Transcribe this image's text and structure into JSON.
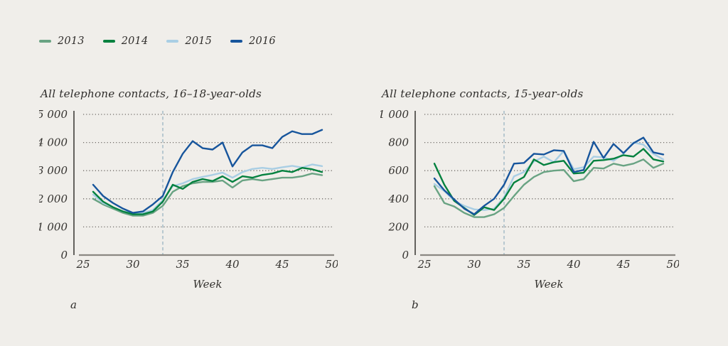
{
  "page": {
    "background": "#f0eeea"
  },
  "legend": {
    "items": [
      {
        "label": "2013",
        "color": "#69a383"
      },
      {
        "label": "2014",
        "color": "#04813f"
      },
      {
        "label": "2015",
        "color": "#a9cee4"
      },
      {
        "label": "2016",
        "color": "#17559c"
      }
    ]
  },
  "chart_data": [
    {
      "type": "line",
      "panel_label": "a",
      "title": "All telephone contacts, 16–18-year-olds",
      "xlabel": "Week",
      "xlim": [
        25,
        50
      ],
      "xticks": [
        25,
        30,
        35,
        40,
        45,
        50
      ],
      "ylim": [
        0,
        5000
      ],
      "yticks": [
        {
          "value": 5000,
          "label": "5 000"
        },
        {
          "value": 4000,
          "label": "4 000"
        },
        {
          "value": 3000,
          "label": "3 000"
        },
        {
          "value": 2000,
          "label": "2 000"
        },
        {
          "value": 1000,
          "label": "1 000"
        },
        {
          "value": 0,
          "label": "0"
        }
      ],
      "grid": "dotted-horizontal",
      "event_week": 33,
      "x_weeks": [
        26,
        27,
        28,
        29,
        30,
        31,
        32,
        33,
        34,
        35,
        36,
        37,
        38,
        39,
        40,
        41,
        42,
        43,
        44,
        45,
        46,
        47,
        48,
        49
      ],
      "series": [
        {
          "name": "2013",
          "color": "#69a383",
          "values": [
            2000,
            1800,
            1650,
            1500,
            1400,
            1400,
            1500,
            1750,
            2250,
            2450,
            2550,
            2600,
            2600,
            2650,
            2400,
            2650,
            2700,
            2650,
            2700,
            2750,
            2750,
            2800,
            2900,
            2840
          ]
        },
        {
          "name": "2014",
          "color": "#04813f",
          "values": [
            2250,
            1900,
            1700,
            1550,
            1450,
            1450,
            1550,
            1900,
            2500,
            2350,
            2600,
            2700,
            2630,
            2800,
            2600,
            2800,
            2750,
            2850,
            2900,
            3000,
            2950,
            3100,
            3050,
            2950
          ]
        },
        {
          "name": "2015",
          "color": "#a9cee4",
          "values": [
            2150,
            1850,
            1700,
            1550,
            1500,
            1500,
            1600,
            1950,
            2450,
            2550,
            2700,
            2780,
            2850,
            2930,
            2750,
            2950,
            3060,
            3100,
            3060,
            3120,
            3170,
            3110,
            3220,
            3160
          ]
        },
        {
          "name": "2016",
          "color": "#17559c",
          "values": [
            2500,
            2100,
            1850,
            1650,
            1500,
            1550,
            1800,
            2100,
            2950,
            3600,
            4050,
            3800,
            3750,
            4000,
            3150,
            3650,
            3900,
            3900,
            3800,
            4200,
            4400,
            4300,
            4300,
            4450
          ]
        }
      ]
    },
    {
      "type": "line",
      "panel_label": "b",
      "title": "All telephone contacts, 15-year-olds",
      "xlabel": "Week",
      "xlim": [
        25,
        50
      ],
      "xticks": [
        25,
        30,
        35,
        40,
        45,
        50
      ],
      "ylim": [
        0,
        1000
      ],
      "yticks": [
        {
          "value": 1000,
          "label": "1 000"
        },
        {
          "value": 800,
          "label": "800"
        },
        {
          "value": 600,
          "label": "600"
        },
        {
          "value": 400,
          "label": "400"
        },
        {
          "value": 200,
          "label": "200"
        },
        {
          "value": 0,
          "label": "0"
        }
      ],
      "grid": "dotted-horizontal",
      "event_week": 33,
      "x_weeks": [
        26,
        27,
        28,
        29,
        30,
        31,
        32,
        33,
        34,
        35,
        36,
        37,
        38,
        39,
        40,
        41,
        42,
        43,
        44,
        45,
        46,
        47,
        48,
        49
      ],
      "series": [
        {
          "name": "2013",
          "color": "#69a383",
          "values": [
            490,
            370,
            345,
            300,
            270,
            270,
            290,
            335,
            420,
            500,
            555,
            590,
            600,
            605,
            525,
            540,
            620,
            615,
            650,
            635,
            650,
            680,
            620,
            650
          ]
        },
        {
          "name": "2014",
          "color": "#04813f",
          "values": [
            650,
            500,
            385,
            335,
            285,
            340,
            320,
            400,
            515,
            555,
            680,
            640,
            660,
            670,
            580,
            585,
            670,
            675,
            685,
            710,
            700,
            755,
            680,
            665
          ]
        },
        {
          "name": "2015",
          "color": "#a9cee4",
          "values": [
            505,
            455,
            385,
            350,
            325,
            320,
            330,
            410,
            560,
            590,
            665,
            700,
            660,
            740,
            610,
            625,
            700,
            695,
            670,
            720,
            800,
            785,
            720,
            680
          ]
        },
        {
          "name": "2016",
          "color": "#17559c",
          "values": [
            545,
            460,
            395,
            330,
            290,
            350,
            400,
            500,
            650,
            655,
            720,
            715,
            745,
            740,
            590,
            605,
            805,
            690,
            790,
            725,
            795,
            835,
            730,
            715
          ]
        }
      ]
    }
  ]
}
